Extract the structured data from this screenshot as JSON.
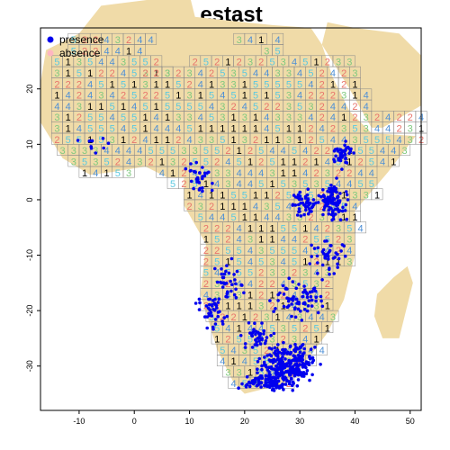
{
  "chart_data": {
    "type": "scatter",
    "title": "estast",
    "xlabel": "",
    "ylabel": "",
    "xlim": [
      -17,
      52
    ],
    "ylim": [
      -38,
      31
    ],
    "x_ticks": [
      -10,
      0,
      10,
      20,
      30,
      40,
      50
    ],
    "y_ticks": [
      -30,
      -20,
      -10,
      0,
      10,
      20
    ],
    "legend": {
      "position": "top-left",
      "entries": [
        {
          "label": "presence",
          "color": "#0000ee",
          "marker": "filled-circle"
        },
        {
          "label": "absence",
          "color": "#ffb6c1",
          "marker": "filled-circle"
        }
      ]
    },
    "grid_cell_size_deg": 2,
    "fold_colors": {
      "1": "#000000",
      "2": "#e8736b",
      "3": "#7fc97f",
      "4": "#4d8fd6",
      "5": "#5bc8e0"
    },
    "land_color": "#f0dba8",
    "presence_clusters": [
      {
        "center": [
          28,
          -30
        ],
        "spread": [
          4,
          3
        ],
        "count": 260
      },
      {
        "center": [
          24,
          -33
        ],
        "spread": [
          3.5,
          1.2
        ],
        "count": 90
      },
      {
        "center": [
          36,
          0
        ],
        "spread": [
          2,
          2.5
        ],
        "count": 90
      },
      {
        "center": [
          31,
          -1
        ],
        "spread": [
          2,
          2
        ],
        "count": 50
      },
      {
        "center": [
          38,
          8
        ],
        "spread": [
          1.5,
          2
        ],
        "count": 40
      },
      {
        "center": [
          14,
          -20
        ],
        "spread": [
          2,
          2.5
        ],
        "count": 40
      },
      {
        "center": [
          30,
          -18
        ],
        "spread": [
          4,
          3
        ],
        "count": 70
      },
      {
        "center": [
          17,
          -15
        ],
        "spread": [
          2,
          3
        ],
        "count": 35
      },
      {
        "center": [
          12,
          4
        ],
        "spread": [
          2,
          2.5
        ],
        "count": 30
      },
      {
        "center": [
          35,
          -10
        ],
        "spread": [
          3,
          3
        ],
        "count": 40
      },
      {
        "center": [
          -7,
          10
        ],
        "spread": [
          3,
          1.5
        ],
        "count": 10
      },
      {
        "center": [
          22,
          -25
        ],
        "spread": [
          2.5,
          2
        ],
        "count": 40
      }
    ]
  }
}
